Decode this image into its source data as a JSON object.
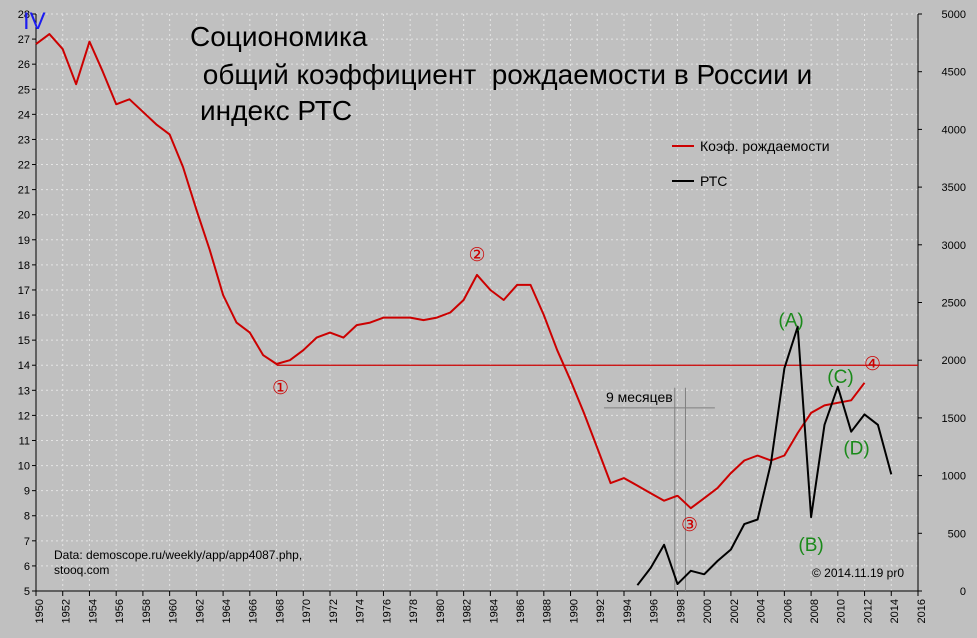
{
  "chart_data": {
    "type": "line",
    "page_label": "IV",
    "title_lines": [
      "Социономика",
      " общий коэффициент  рождаемости в России и",
      "индекс РТС"
    ],
    "x_ticks": [
      1950,
      1952,
      1954,
      1956,
      1958,
      1960,
      1962,
      1964,
      1966,
      1968,
      1970,
      1972,
      1974,
      1976,
      1978,
      1980,
      1982,
      1984,
      1986,
      1988,
      1990,
      1992,
      1994,
      1996,
      1998,
      2000,
      2002,
      2004,
      2006,
      2008,
      2010,
      2012,
      2014,
      2016
    ],
    "xlim": [
      1950,
      2016
    ],
    "y_left_ticks": [
      5,
      6,
      7,
      8,
      9,
      10,
      11,
      12,
      13,
      14,
      15,
      16,
      17,
      18,
      19,
      20,
      21,
      22,
      23,
      24,
      25,
      26,
      27,
      28
    ],
    "y_left_lim": [
      5,
      28
    ],
    "y_right_ticks": [
      0,
      500,
      1000,
      1500,
      2000,
      2500,
      3000,
      3500,
      4000,
      4500,
      5000
    ],
    "y_right_lim": [
      0,
      5000
    ],
    "grid": true,
    "legend_position": "top-right",
    "series": [
      {
        "name": "Коэф. рождаемости",
        "color": "#cc0000",
        "axis": "left",
        "x": [
          1950,
          1951,
          1952,
          1953,
          1954,
          1955,
          1956,
          1957,
          1958,
          1959,
          1960,
          1961,
          1962,
          1963,
          1964,
          1965,
          1966,
          1967,
          1968,
          1969,
          1970,
          1971,
          1972,
          1973,
          1974,
          1975,
          1976,
          1977,
          1978,
          1979,
          1980,
          1981,
          1982,
          1983,
          1984,
          1985,
          1986,
          1987,
          1988,
          1989,
          1990,
          1991,
          1992,
          1993,
          1994,
          1995,
          1996,
          1997,
          1998,
          1999,
          2000,
          2001,
          2002,
          2003,
          2004,
          2005,
          2006,
          2007,
          2008,
          2009,
          2010,
          2011,
          2012
        ],
        "y": [
          26.8,
          27.2,
          26.6,
          25.2,
          26.9,
          25.7,
          24.4,
          24.6,
          24.1,
          23.6,
          23.2,
          21.9,
          20.2,
          18.6,
          16.8,
          15.7,
          15.3,
          14.4,
          14.05,
          14.2,
          14.6,
          15.1,
          15.3,
          15.1,
          15.6,
          15.7,
          15.9,
          15.9,
          15.9,
          15.8,
          15.9,
          16.1,
          16.6,
          17.6,
          17.0,
          16.6,
          17.2,
          17.2,
          16.0,
          14.6,
          13.4,
          12.1,
          10.7,
          9.3,
          9.5,
          9.2,
          8.9,
          8.6,
          8.8,
          8.3,
          8.7,
          9.1,
          9.7,
          10.2,
          10.4,
          10.2,
          10.4,
          11.3,
          12.1,
          12.4,
          12.5,
          12.6,
          13.3
        ]
      },
      {
        "name": "РТС",
        "color": "#000000",
        "axis": "right",
        "x": [
          1995,
          1996,
          1997,
          1998,
          1999,
          2000,
          2001,
          2002,
          2003,
          2004,
          2005,
          2006,
          2007,
          2008,
          2009,
          2010,
          2011,
          2012,
          2013,
          2014
        ],
        "y": [
          50,
          200,
          400,
          60,
          175,
          145,
          260,
          360,
          580,
          620,
          1110,
          1930,
          2290,
          640,
          1440,
          1770,
          1380,
          1530,
          1440,
          1010
        ]
      }
    ],
    "reference_line": {
      "y": 14.0,
      "color": "#cc0000",
      "x_from": 1968,
      "x_to": 2016
    },
    "annotations": [
      {
        "text": "①",
        "x": 1968.3,
        "y": 13.05,
        "color": "#cc0000"
      },
      {
        "text": "②",
        "x": 1983.0,
        "y": 18.35,
        "color": "#cc0000"
      },
      {
        "text": "③",
        "x": 1998.9,
        "y": 7.6,
        "color": "#cc0000"
      },
      {
        "text": "④",
        "x": 2012.6,
        "y": 14.0,
        "color": "#cc0000"
      },
      {
        "text": "(A)",
        "x": 2006.5,
        "y": 15.75,
        "color": "#1a8a1a"
      },
      {
        "text": "(B)",
        "x": 2008.0,
        "y": 6.8,
        "color": "#1a8a1a"
      },
      {
        "text": "(C)",
        "x": 2010.2,
        "y": 13.5,
        "color": "#1a8a1a"
      },
      {
        "text": "(D)",
        "x": 2011.4,
        "y": 10.65,
        "color": "#1a8a1a"
      }
    ],
    "measure": {
      "label": "9 месяцев",
      "x1": 1997.8,
      "x2": 1998.6,
      "x_left": 1992.5,
      "x_right": 2000.8,
      "y_top": 13.1,
      "y_bar": 12.3,
      "y_bottom": 5.0
    },
    "source_lines": [
      "Data:  demoscope.ru/weekly/app/app4087.php,",
      "stooq.com"
    ],
    "copyright": "© 2014.11.19  pr0"
  }
}
